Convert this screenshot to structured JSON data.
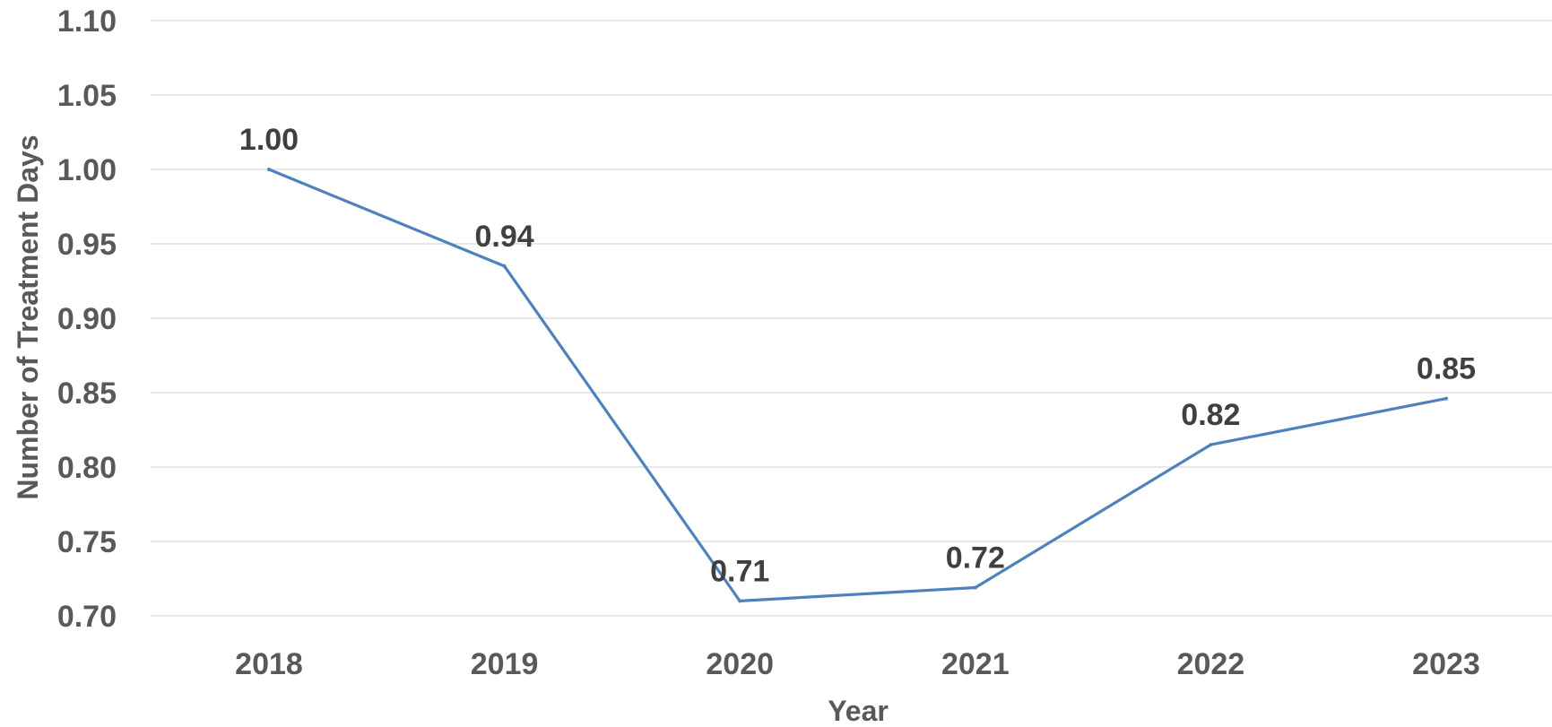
{
  "chart_data": {
    "type": "line",
    "categories": [
      "2018",
      "2019",
      "2020",
      "2021",
      "2022",
      "2023"
    ],
    "series": [
      {
        "values": [
          1.0,
          0.935,
          0.71,
          0.719,
          0.815,
          0.846
        ],
        "data_labels": [
          "1.00",
          "0.94",
          "0.71",
          "0.72",
          "0.82",
          "0.85"
        ],
        "color": "#4f81bd"
      }
    ],
    "title": "",
    "xlabel": "Year",
    "ylabel": "Number of Treatment Days",
    "ylim": [
      0.7,
      1.1
    ],
    "y_ticks": [
      0.7,
      0.75,
      0.8,
      0.85,
      0.9,
      0.95,
      1.0,
      1.05,
      1.1
    ],
    "y_tick_labels": [
      "0.70",
      "0.75",
      "0.80",
      "0.85",
      "0.90",
      "0.95",
      "1.00",
      "1.05",
      "1.10"
    ],
    "grid": true,
    "legend": "none"
  }
}
